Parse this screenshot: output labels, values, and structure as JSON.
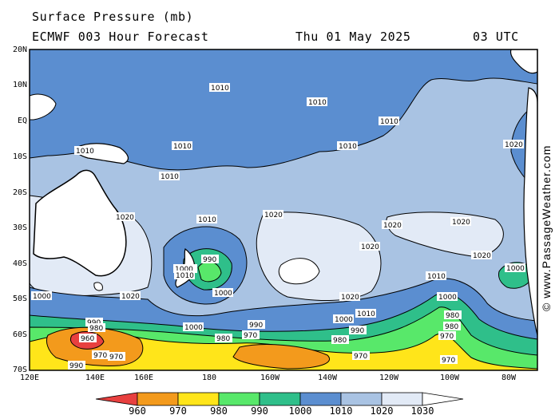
{
  "header": {
    "title": "Surface Pressure (mb)",
    "model_line": "ECMWF 003 Hour Forecast",
    "date": "Thu 01 May 2025",
    "time": "03 UTC"
  },
  "latitude_labels": [
    "20N",
    "10N",
    "EQ",
    "10S",
    "20S",
    "30S",
    "40S",
    "50S",
    "60S",
    "70S"
  ],
  "longitude_labels": [
    "120E",
    "140E",
    "160E",
    "180",
    "160W",
    "140W",
    "120W",
    "100W",
    "80W"
  ],
  "colorbar": {
    "values": [
      "960",
      "970",
      "980",
      "990",
      "1000",
      "1010",
      "1020",
      "1030"
    ],
    "colors": [
      "#e8403f",
      "#f39a1c",
      "#ffe51a",
      "#58e86a",
      "#2fbf8a",
      "#5b8ed0",
      "#a9c3e3",
      "#e2eaf6"
    ]
  },
  "isobar_labels": [
    "1010",
    "1020",
    "1000",
    "990",
    "980",
    "970",
    "960"
  ],
  "credit": "© www.PassageWeather.com",
  "colors": {
    "land": "#ffffff",
    "coast": "#000000",
    "grid_bg": "#a9c3e3"
  }
}
